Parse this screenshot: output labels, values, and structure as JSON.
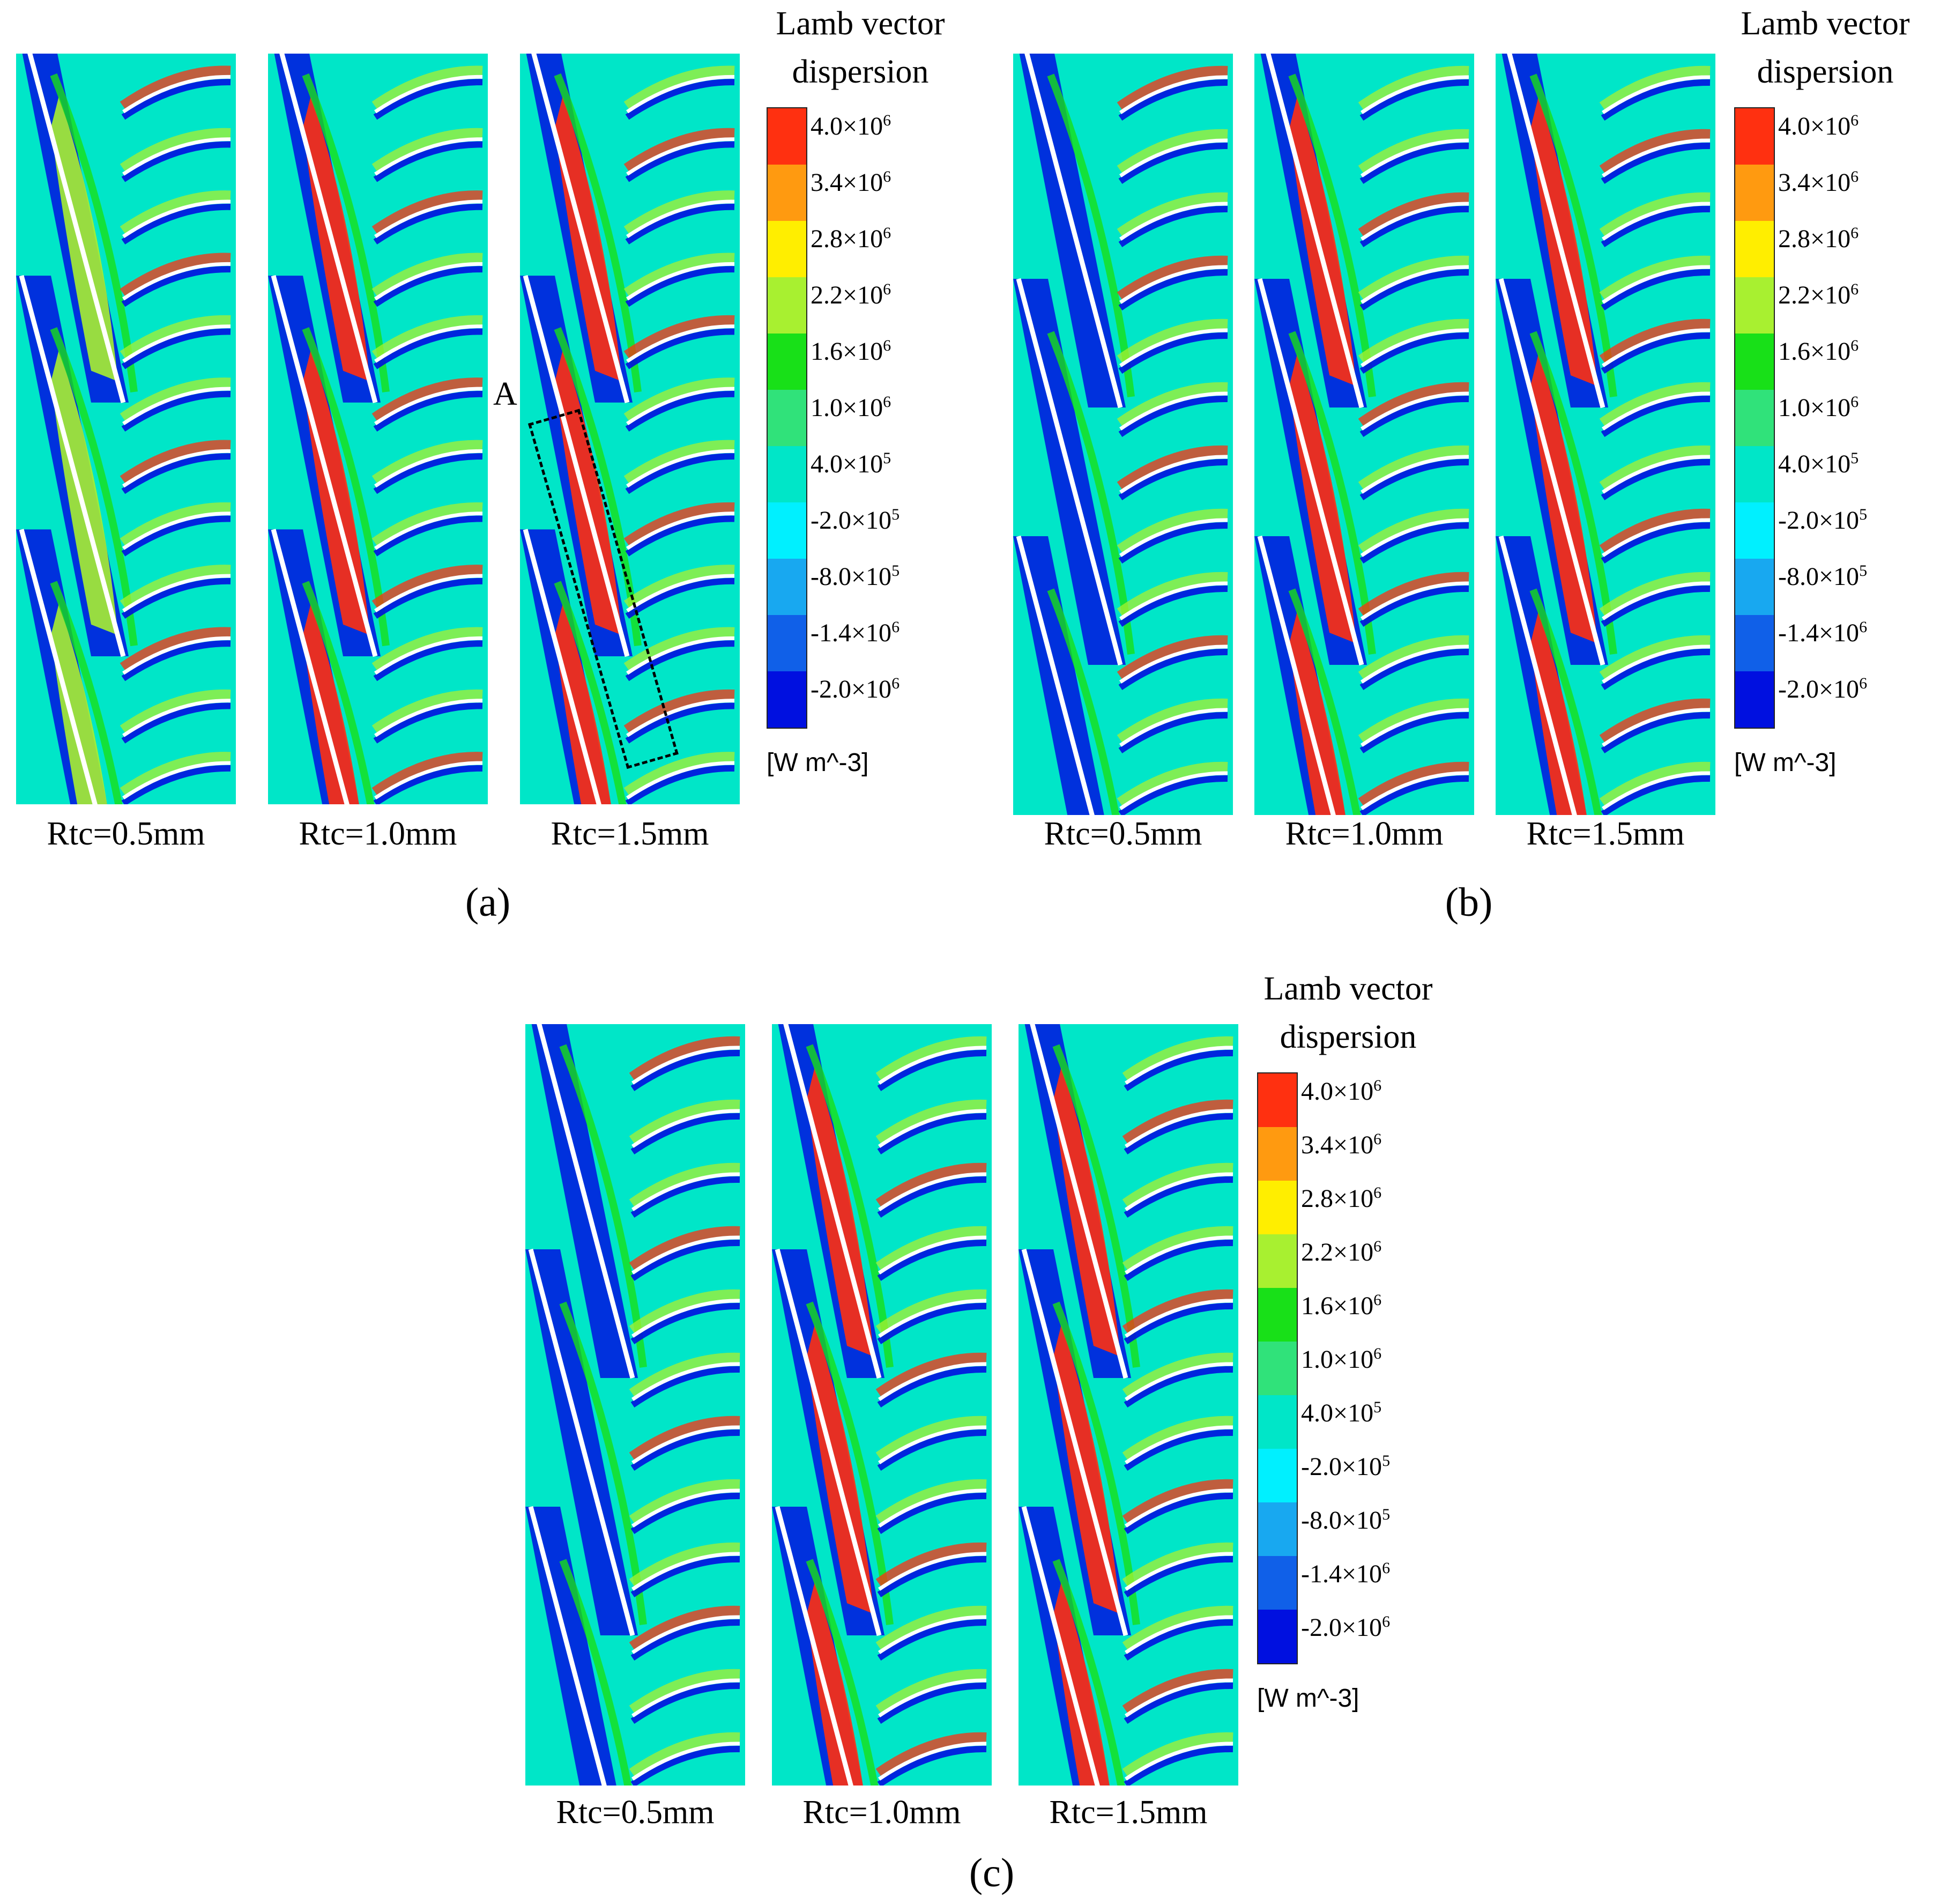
{
  "legend": {
    "title_line1": "Lamb vector",
    "title_line2": "dispersion",
    "unit": "[W m^-3]",
    "ticks": [
      {
        "mantissa": "4.0×10",
        "exp": "6"
      },
      {
        "mantissa": "3.4×10",
        "exp": "6"
      },
      {
        "mantissa": "2.8×10",
        "exp": "6"
      },
      {
        "mantissa": "2.2×10",
        "exp": "6"
      },
      {
        "mantissa": "1.6×10",
        "exp": "6"
      },
      {
        "mantissa": "1.0×10",
        "exp": "6"
      },
      {
        "mantissa": "4.0×10",
        "exp": "5"
      },
      {
        "mantissa": "-2.0×10",
        "exp": "5"
      },
      {
        "mantissa": "-8.0×10",
        "exp": "5"
      },
      {
        "mantissa": "-1.4×10",
        "exp": "6"
      },
      {
        "mantissa": "-2.0×10",
        "exp": "6"
      }
    ],
    "colors": [
      "#ff3010",
      "#ff9a10",
      "#ffee00",
      "#a8f030",
      "#18e018",
      "#30e27a",
      "#00e6c8",
      "#00f0ff",
      "#18a8f0",
      "#1060e8",
      "#0010e0"
    ]
  },
  "panels": [
    {
      "label": "(a)",
      "cases": [
        "Rtc=0.5mm",
        "Rtc=1.0mm",
        "Rtc=1.5mm"
      ],
      "annotation": "A"
    },
    {
      "label": "(b)",
      "cases": [
        "Rtc=0.5mm",
        "Rtc=1.0mm",
        "Rtc=1.5mm"
      ]
    },
    {
      "label": "(c)",
      "cases": [
        "Rtc=0.5mm",
        "Rtc=1.0mm",
        "Rtc=1.5mm"
      ]
    }
  ]
}
